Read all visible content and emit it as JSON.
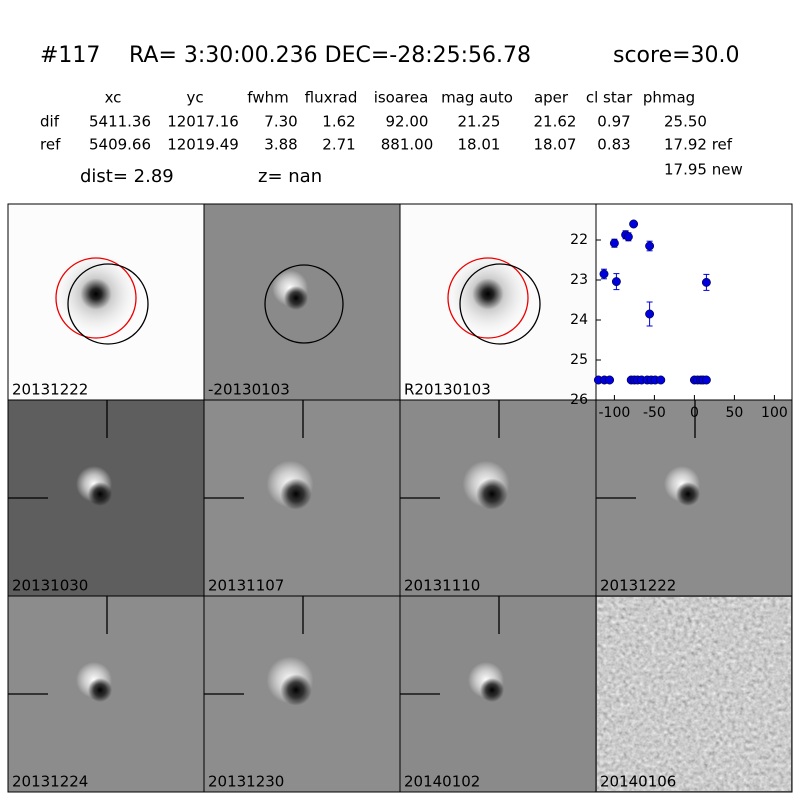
{
  "header": {
    "id": "#117",
    "coords": "RA= 3:30:00.236 DEC=-28:25:56.78",
    "score": "score=30.0",
    "dist": "dist=  2.89",
    "z": "z=   nan"
  },
  "table": {
    "columns": [
      "xc",
      "yc",
      "fwhm",
      "fluxrad",
      "isoarea",
      "mag auto",
      "aper",
      "cl star",
      "phmag"
    ],
    "rows": [
      [
        "dif",
        "5411.36",
        "12017.16",
        "7.30",
        "1.62",
        "92.00",
        "21.25",
        "21.62",
        "0.97",
        "25.50"
      ],
      [
        "ref",
        "5409.66",
        "12019.49",
        "3.88",
        "2.71",
        "881.00",
        "18.01",
        "18.07",
        "0.83",
        "17.92 ref"
      ]
    ],
    "extra": "17.95 new"
  },
  "stamps": [
    {
      "label": "20131222"
    },
    {
      "label": "-20130103"
    },
    {
      "label": "R20130103"
    },
    {
      "label": "20131030"
    },
    {
      "label": "20131107"
    },
    {
      "label": "20131110"
    },
    {
      "label": "20131222",
      "color": "#ff0000"
    },
    {
      "label": "20131224"
    },
    {
      "label": "20131230"
    },
    {
      "label": "20140102"
    },
    {
      "label": "20140106"
    }
  ],
  "chart_data": {
    "type": "scatter",
    "xlim": [
      -123,
      122
    ],
    "ylim": [
      26,
      21.1
    ],
    "xticks": [
      -100,
      -50,
      0,
      50,
      100
    ],
    "yticks": [
      22,
      23,
      24,
      25,
      26
    ],
    "series": [
      {
        "color": "#0000dd",
        "x": [
          -113,
          -100,
          -97.5,
          -86,
          -82.5,
          -76,
          -56,
          -56,
          15,
          -120,
          -112.5,
          -106,
          -79,
          -75,
          -71,
          -66,
          -59,
          -54,
          -49,
          -42,
          0,
          4,
          8,
          11,
          15
        ],
        "values": [
          22.85,
          22.08,
          23.04,
          21.87,
          21.92,
          21.6,
          22.15,
          23.85,
          23.06,
          25.5,
          25.5,
          25.5,
          25.5,
          25.5,
          25.5,
          25.5,
          25.5,
          25.5,
          25.5,
          25.5,
          25.5,
          25.5,
          25.5,
          25.5,
          25.5
        ],
        "errors": [
          0.12,
          0.1,
          0.2,
          0.1,
          0.1,
          0.05,
          0.12,
          0.3,
          0.2,
          null,
          null,
          null,
          null,
          null,
          null,
          null,
          null,
          null,
          null,
          null,
          null,
          null,
          null,
          null,
          null
        ]
      }
    ]
  }
}
